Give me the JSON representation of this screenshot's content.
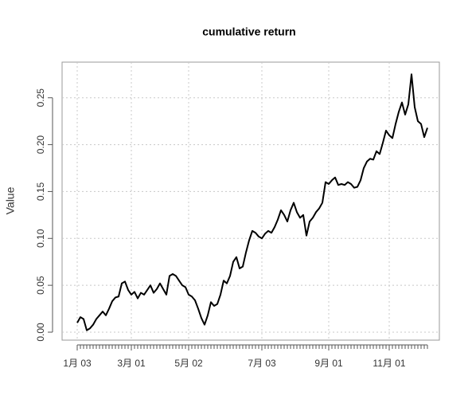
{
  "chart_data": {
    "type": "line",
    "title": "cumulative return",
    "ylabel": "Value",
    "color": "#000000",
    "grid": true,
    "categories": [
      "1月 03",
      null,
      null,
      null,
      null,
      null,
      null,
      null,
      null,
      null,
      null,
      null,
      null,
      null,
      null,
      null,
      null,
      "3月 01",
      null,
      null,
      null,
      null,
      null,
      null,
      null,
      null,
      null,
      null,
      null,
      null,
      null,
      null,
      null,
      null,
      null,
      "5月 02",
      null,
      null,
      null,
      null,
      null,
      null,
      null,
      null,
      null,
      null,
      null,
      null,
      null,
      null,
      null,
      null,
      null,
      null,
      null,
      null,
      null,
      null,
      "7月 03",
      null,
      null,
      null,
      null,
      null,
      null,
      null,
      null,
      null,
      null,
      null,
      null,
      null,
      null,
      null,
      null,
      null,
      null,
      null,
      null,
      "9月 01",
      null,
      null,
      null,
      null,
      null,
      null,
      null,
      null,
      null,
      null,
      null,
      null,
      null,
      null,
      null,
      null,
      null,
      null,
      "11月 01",
      null,
      null,
      null,
      null,
      null,
      null,
      null,
      null,
      null,
      null,
      null,
      null
    ],
    "values": [
      0.01,
      0.016,
      0.014,
      0.002,
      0.004,
      0.008,
      0.014,
      0.018,
      0.022,
      0.018,
      0.025,
      0.033,
      0.037,
      0.038,
      0.052,
      0.054,
      0.045,
      0.04,
      0.043,
      0.036,
      0.042,
      0.04,
      0.045,
      0.05,
      0.042,
      0.046,
      0.052,
      0.046,
      0.04,
      0.06,
      0.062,
      0.06,
      0.055,
      0.05,
      0.048,
      0.04,
      0.038,
      0.034,
      0.025,
      0.015,
      0.008,
      0.018,
      0.032,
      0.028,
      0.03,
      0.04,
      0.055,
      0.052,
      0.06,
      0.075,
      0.08,
      0.068,
      0.07,
      0.085,
      0.098,
      0.108,
      0.106,
      0.102,
      0.1,
      0.105,
      0.108,
      0.106,
      0.112,
      0.12,
      0.13,
      0.125,
      0.118,
      0.13,
      0.138,
      0.128,
      0.122,
      0.125,
      0.103,
      0.118,
      0.122,
      0.128,
      0.132,
      0.138,
      0.16,
      0.158,
      0.162,
      0.165,
      0.157,
      0.158,
      0.157,
      0.16,
      0.158,
      0.154,
      0.155,
      0.162,
      0.175,
      0.182,
      0.185,
      0.184,
      0.193,
      0.19,
      0.202,
      0.215,
      0.21,
      0.207,
      0.222,
      0.235,
      0.245,
      0.232,
      0.243,
      0.275,
      0.24,
      0.225,
      0.222,
      0.208,
      0.218
    ],
    "ylim": [
      -0.0085,
      0.288
    ],
    "yticks": [
      {
        "value": 0,
        "label": "0.00"
      },
      {
        "value": 0.05,
        "label": "0.05"
      },
      {
        "value": 0.1,
        "label": "0.10"
      },
      {
        "value": 0.15,
        "label": "0.15"
      },
      {
        "value": 0.2,
        "label": "0.20"
      },
      {
        "value": 0.25,
        "label": "0.25"
      }
    ]
  }
}
